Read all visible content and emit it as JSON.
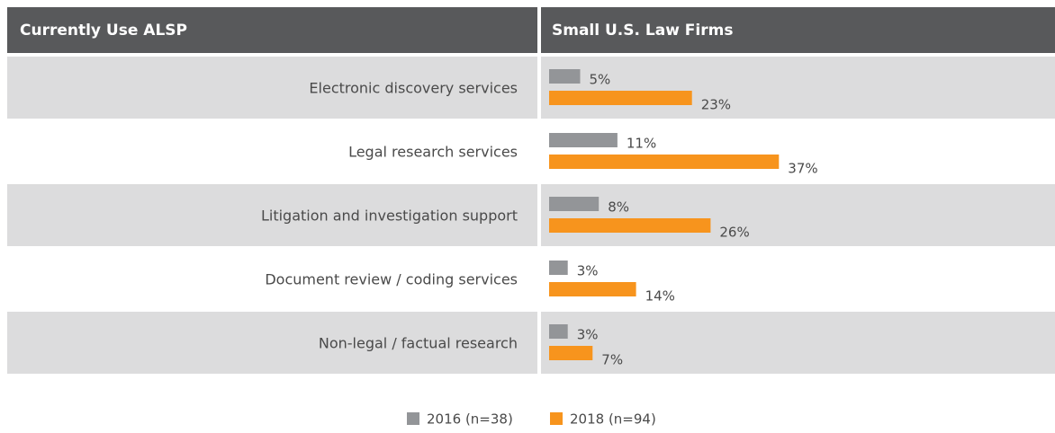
{
  "chart_data": {
    "type": "bar",
    "orientation": "horizontal",
    "row_header": "Currently Use ALSP",
    "title": "Small U.S. Law Firms",
    "categories": [
      "Electronic discovery services",
      "Legal research services",
      "Litigation and investigation support",
      "Document review / coding services",
      "Non-legal / factual research"
    ],
    "series": [
      {
        "name": "2016 (n=38)",
        "color": "#939598",
        "values": [
          5,
          11,
          8,
          3,
          3
        ],
        "value_labels": [
          "5%",
          "11%",
          "8%",
          "3%",
          "3%"
        ]
      },
      {
        "name": "2018 (n=94)",
        "color": "#f7941d",
        "values": [
          23,
          37,
          26,
          14,
          7
        ],
        "value_labels": [
          "23%",
          "37%",
          "26%",
          "14%",
          "7%"
        ]
      }
    ],
    "legend": "bottom"
  }
}
